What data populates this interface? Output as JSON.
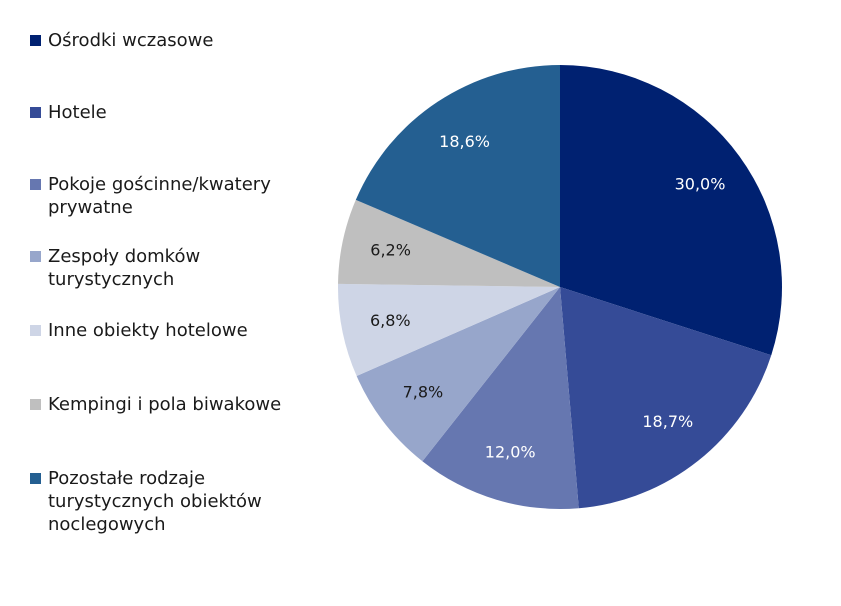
{
  "chart_data": {
    "type": "pie",
    "categories": [
      "Ośrodki wczasowe",
      "Hotele",
      "Pokoje gościnne/kwatery prywatne",
      "Zespoły domków turystycznych",
      "Inne obiekty hotelowe",
      "Kempingi i pola biwakowe",
      "Pozostałe rodzaje turystycznych obiektów noclegowych"
    ],
    "legend_lines": [
      "Ośrodki wczasowe",
      "Hotele",
      "Pokoje gościnne/kwatery\nprywatne",
      "Zespoły domków\nturystycznych",
      "Inne obiekty hotelowe",
      "Kempingi i pola biwakowe",
      "Pozostałe rodzaje\nturystycznych obiektów\nnoclegowych"
    ],
    "values": [
      30.0,
      18.7,
      12.0,
      7.8,
      6.8,
      6.2,
      18.6
    ],
    "labels": [
      "30,0%",
      "18,7%",
      "12,0%",
      "7,8%",
      "6,8%",
      "6,2%",
      "18,6%"
    ],
    "colors": [
      "#002171",
      "#354b97",
      "#6677b0",
      "#97a6cb",
      "#ced5e6",
      "#bfbfbf",
      "#245f91"
    ],
    "label_colors": [
      "#ffffff",
      "#ffffff",
      "#ffffff",
      "#1a1a1a",
      "#1a1a1a",
      "#1a1a1a",
      "#ffffff"
    ],
    "legend_position": "left",
    "start_angle": "12 o'clock",
    "direction": "clockwise"
  }
}
